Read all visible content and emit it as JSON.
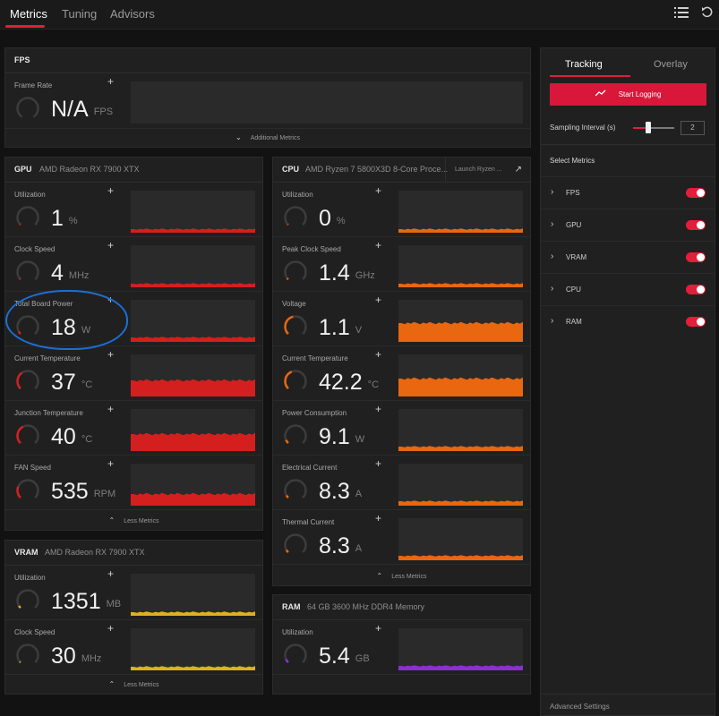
{
  "topbar": {
    "tabs": [
      {
        "label": "Metrics",
        "active": true
      },
      {
        "label": "Tuning",
        "active": false
      },
      {
        "label": "Advisors",
        "active": false
      }
    ],
    "icons": [
      "list-icon",
      "refresh-icon"
    ]
  },
  "fps": {
    "title": "FPS",
    "metric": {
      "label": "Frame Rate",
      "value": "N/A",
      "unit": "FPS"
    },
    "footer": "Additional Metrics"
  },
  "gpu": {
    "kind": "GPU",
    "name": "AMD Radeon RX 7900 XTX",
    "metrics": [
      {
        "label": "Utilization",
        "value": "1",
        "unit": "%",
        "color": "#d41f1f",
        "level": 0.02
      },
      {
        "label": "Clock Speed",
        "value": "4",
        "unit": "MHz",
        "color": "#d41f1f",
        "level": 0.02
      },
      {
        "label": "Total Board Power",
        "value": "18",
        "unit": "W",
        "color": "#d41f1f",
        "level": 0.06
      },
      {
        "label": "Current Temperature",
        "value": "37",
        "unit": "°C",
        "color": "#d41f1f",
        "level": 0.37
      },
      {
        "label": "Junction Temperature",
        "value": "40",
        "unit": "°C",
        "color": "#d41f1f",
        "level": 0.4
      },
      {
        "label": "FAN Speed",
        "value": "535",
        "unit": "RPM",
        "color": "#d41f1f",
        "level": 0.25
      }
    ],
    "footer": "Less Metrics"
  },
  "cpu": {
    "kind": "CPU",
    "name": "AMD Ryzen 7 5800X3D 8-Core Proce...",
    "launch": "Launch Ryzen ...",
    "metrics": [
      {
        "label": "Utilization",
        "value": "0",
        "unit": "%",
        "color": "#e8670f",
        "level": 0.0
      },
      {
        "label": "Peak Clock Speed",
        "value": "1.4",
        "unit": "GHz",
        "color": "#e8670f",
        "level": 0.03
      },
      {
        "label": "Voltage",
        "value": "1.1",
        "unit": "V",
        "color": "#e8670f",
        "level": 0.45
      },
      {
        "label": "Current Temperature",
        "value": "42.2",
        "unit": "°C",
        "color": "#e8670f",
        "level": 0.42
      },
      {
        "label": "Power Consumption",
        "value": "9.1",
        "unit": "W",
        "color": "#e8670f",
        "level": 0.08
      },
      {
        "label": "Electrical Current",
        "value": "8.3",
        "unit": "A",
        "color": "#e8670f",
        "level": 0.06
      },
      {
        "label": "Thermal Current",
        "value": "8.3",
        "unit": "A",
        "color": "#e8670f",
        "level": 0.06
      }
    ],
    "footer": "Less Metrics"
  },
  "vram": {
    "kind": "VRAM",
    "name": "AMD Radeon RX 7900 XTX",
    "metrics": [
      {
        "label": "Utilization",
        "value": "1351",
        "unit": "MB",
        "color": "#e0b020",
        "level": 0.05
      },
      {
        "label": "Clock Speed",
        "value": "30",
        "unit": "MHz",
        "color": "#e0b020",
        "level": 0.02
      }
    ],
    "footer": "Less Metrics"
  },
  "ram": {
    "kind": "RAM",
    "name": "64 GB 3600 MHz DDR4 Memory",
    "metrics": [
      {
        "label": "Utilization",
        "value": "5.4",
        "unit": "GB",
        "color": "#8a30d0",
        "level": 0.08
      }
    ]
  },
  "tracking": {
    "tabs": [
      {
        "label": "Tracking",
        "active": true
      },
      {
        "label": "Overlay",
        "active": false
      }
    ],
    "start_label": "Start Logging",
    "sampling_label": "Sampling Interval (s)",
    "sampling_value": "2",
    "select_label": "Select Metrics",
    "items": [
      {
        "label": "FPS",
        "on": true
      },
      {
        "label": "GPU",
        "on": true
      },
      {
        "label": "VRAM",
        "on": true
      },
      {
        "label": "CPU",
        "on": true
      },
      {
        "label": "RAM",
        "on": true
      }
    ],
    "advanced": "Advanced Settings"
  }
}
